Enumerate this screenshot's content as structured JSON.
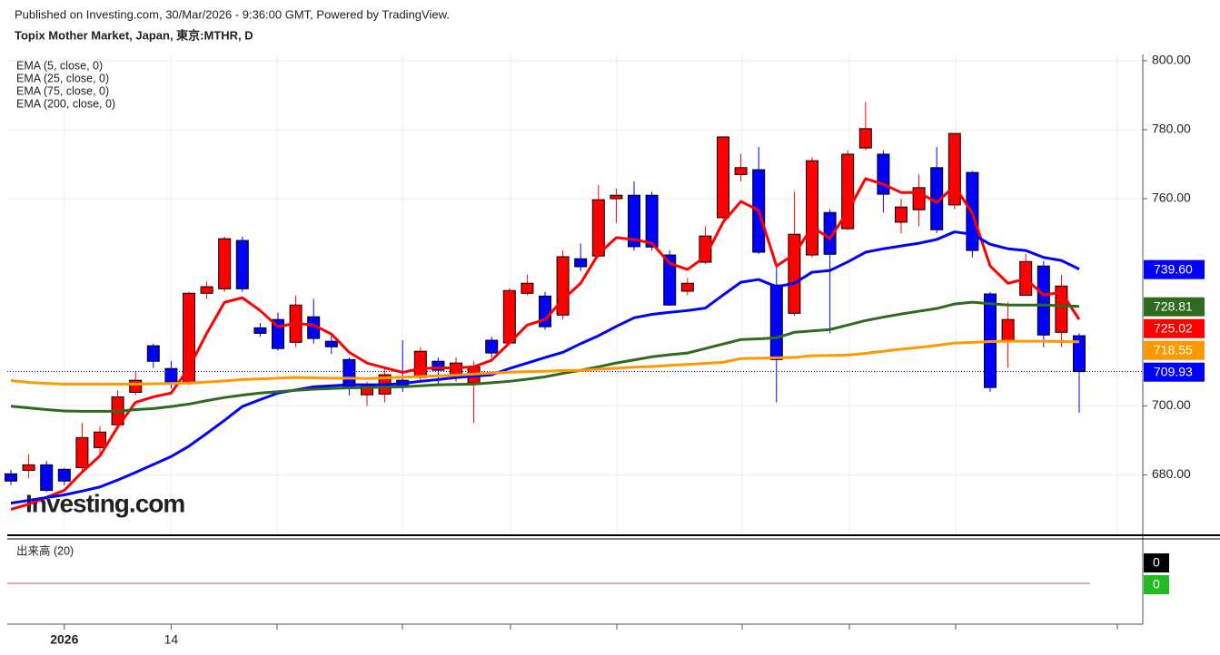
{
  "chart_data": {
    "type": "candlestick",
    "subtitle": "Published on Investing.com, 30/Mar/2026 - 9:36:00 GMT, Powered by TradingView.",
    "title": "Topix Mother Market, Japan, 東京:MTHR, D",
    "watermark": "Investing.com",
    "categories": [
      null,
      null,
      null,
      "2026",
      null,
      null,
      null,
      null,
      null,
      "14",
      null,
      null,
      null,
      null,
      null,
      null,
      null,
      null,
      null,
      null,
      null,
      null,
      null,
      null,
      null,
      null,
      null,
      null,
      null,
      null,
      null,
      null,
      null,
      null,
      null,
      null,
      null,
      null,
      null,
      null,
      null,
      null,
      null,
      null,
      null,
      null,
      null,
      null,
      null,
      null,
      null,
      null,
      null,
      null,
      null,
      null,
      null,
      null,
      null,
      null,
      null
    ],
    "open": [
      680.3,
      681.3,
      682.9,
      681.6,
      682.1,
      687.9,
      694.5,
      703.9,
      717.4,
      710.8,
      706.6,
      732.6,
      733.9,
      747.9,
      722.6,
      725,
      718.4,
      725.8,
      718.7,
      713.4,
      703.2,
      703.4,
      707.4,
      708.2,
      712.9,
      709,
      706.6,
      719,
      718.2,
      732.6,
      731.8,
      726.3,
      742.6,
      743.4,
      760,
      761,
      761,
      743.7,
      733.2,
      741.6,
      754.5,
      767,
      768.4,
      735,
      726.8,
      743.7,
      756,
      751.3,
      774.7,
      772.9,
      753.2,
      756.8,
      769,
      758.2,
      767.6,
      732.4,
      718.7,
      732,
      740.5,
      721.3,
      720.3
    ],
    "high": [
      681.5,
      686,
      684,
      682,
      695,
      694,
      704.5,
      710,
      718,
      713,
      733,
      736,
      749,
      749,
      724,
      727,
      732,
      731,
      721,
      714,
      707,
      711,
      719,
      717,
      714,
      714,
      713,
      720,
      734,
      738,
      733,
      745,
      747,
      764,
      763,
      765,
      762,
      745,
      737,
      752,
      778,
      773,
      775,
      741,
      762,
      772,
      757,
      774,
      788,
      774,
      760,
      767,
      775,
      779,
      768,
      733,
      730,
      744,
      742,
      738,
      721
    ],
    "low": [
      677,
      679,
      675,
      677,
      681,
      686,
      694,
      703,
      711,
      705,
      706,
      731,
      733,
      733,
      720,
      716,
      717,
      718,
      715,
      703,
      700,
      701,
      704,
      707,
      706,
      707,
      695,
      714,
      718,
      732,
      722,
      725,
      739,
      743,
      753,
      745,
      745,
      729,
      732,
      741,
      754,
      765,
      744,
      701,
      726,
      743,
      721,
      751,
      774,
      756,
      750,
      752,
      750,
      757,
      743,
      704,
      711,
      732,
      717,
      717,
      698
    ],
    "close": [
      678.2,
      682.9,
      675.5,
      678.2,
      690.8,
      692.4,
      702.6,
      707.4,
      712.9,
      706.8,
      732.6,
      734.5,
      748.4,
      733.9,
      721,
      716.6,
      729.2,
      719.5,
      717.1,
      705,
      706.1,
      709,
      705.5,
      715.8,
      710.3,
      712.4,
      711.3,
      715.3,
      733.4,
      735.5,
      722.9,
      743.2,
      740.3,
      759.7,
      761,
      746.1,
      746,
      729.2,
      735.5,
      749.2,
      777.9,
      769,
      744.5,
      713.4,
      749.7,
      771,
      743.9,
      772.9,
      780.3,
      761.3,
      757.6,
      763.2,
      751,
      778.9,
      745,
      705.3,
      725,
      741.8,
      720.5,
      734.7,
      709.93
    ],
    "close_label": "709.93",
    "up_color": "#ff0000",
    "down_color": "#0000ff",
    "last_color": "#0000ff",
    "series": [
      {
        "name": "EMA (5, close, 0)",
        "color": "#ff0000",
        "last_label": "725.02",
        "values": [
          670,
          671.5,
          673.5,
          675.5,
          680.8,
          685.5,
          693.9,
          701,
          702.6,
          703.7,
          711,
          721,
          730,
          731.3,
          727.6,
          722.9,
          723.9,
          723.4,
          720.8,
          715.5,
          712.4,
          711,
          709.7,
          710.8,
          711,
          711,
          711.3,
          713.2,
          718.2,
          723.4,
          725,
          730.8,
          735.5,
          744,
          748.7,
          748.2,
          747.1,
          741.3,
          739.5,
          743.2,
          753.2,
          759.2,
          756.6,
          740.5,
          743.9,
          751.8,
          748.5,
          756.3,
          765.8,
          764.2,
          761.8,
          761.8,
          758.9,
          763.7,
          755.8,
          740.5,
          735.5,
          736.8,
          732.1,
          732.9,
          725.02
        ]
      },
      {
        "name": "EMA (25, close, 0)",
        "color": "#0000ff",
        "last_label": "739.60",
        "values": [
          671.8,
          672.6,
          673.4,
          674.2,
          675.3,
          676.5,
          678.5,
          680.7,
          683,
          685.3,
          688.3,
          692,
          695.8,
          699.8,
          701.8,
          703.7,
          704.6,
          705.5,
          705.8,
          706.1,
          706.1,
          706.1,
          706.5,
          707.1,
          707.6,
          708.2,
          708.6,
          709,
          710.8,
          712.4,
          714,
          715.5,
          718,
          720.3,
          723,
          725.5,
          726.5,
          727.1,
          727.6,
          728.3,
          732.1,
          735.8,
          736.6,
          734.5,
          735.5,
          738.7,
          739.2,
          741.7,
          744.5,
          745.5,
          746.3,
          747.1,
          748.2,
          750.4,
          749.7,
          746.8,
          745.5,
          745,
          743,
          742.1,
          739.6
        ]
      },
      {
        "name": "EMA (75, close, 0)",
        "color": "#2e6b1e",
        "last_label": "728.81",
        "values": [
          699.9,
          699.4,
          698.9,
          698.5,
          698.4,
          698.4,
          698.4,
          698.9,
          699.2,
          699.8,
          700.5,
          701.5,
          702.4,
          703.1,
          703.7,
          704.1,
          704.5,
          704.8,
          705,
          705.2,
          705.3,
          705.4,
          705.5,
          705.8,
          706.1,
          706.2,
          706.3,
          706.7,
          707.1,
          707.7,
          708.4,
          709.4,
          710.3,
          711.3,
          712.4,
          713.3,
          714.2,
          714.8,
          715.3,
          716.6,
          717.9,
          719.2,
          719.4,
          719.7,
          721.3,
          721.7,
          722.1,
          723.4,
          724.7,
          725.7,
          726.6,
          727.4,
          728.2,
          729.5,
          730,
          729.6,
          729.2,
          729.2,
          729.2,
          729,
          728.81
        ]
      },
      {
        "name": "EMA (200, close, 0)",
        "color": "#ff9900",
        "last_label": "718.55",
        "values": [
          707.3,
          706.8,
          706.5,
          706.3,
          706.3,
          706.3,
          706.3,
          706.3,
          706.4,
          706.5,
          706.6,
          706.9,
          707.2,
          707.6,
          707.8,
          708,
          708.2,
          708.1,
          708,
          708,
          707.9,
          708.1,
          708.3,
          708.5,
          708.7,
          708.9,
          709.2,
          709.5,
          709.7,
          709.9,
          710,
          710.2,
          710.3,
          710.6,
          710.9,
          711.2,
          711.4,
          711.7,
          712,
          712.3,
          712.6,
          713.7,
          713.8,
          713.9,
          714,
          714.5,
          714.6,
          714.7,
          715.2,
          715.8,
          716.4,
          716.9,
          717.5,
          718.2,
          718.4,
          718.6,
          718.7,
          718.7,
          718.7,
          718.6,
          718.55
        ]
      }
    ],
    "ylim": [
      662.5,
      801.8
    ],
    "yticks": [
      {
        "value": 680,
        "label": "680.00"
      },
      {
        "value": 700,
        "label": "700.00"
      },
      {
        "value": 760,
        "label": "760.00"
      },
      {
        "value": 780,
        "label": "780.00"
      },
      {
        "value": 800,
        "label": "800.00"
      }
    ],
    "grid": true,
    "volume": {
      "name": "出来高 (20)",
      "values": [
        0,
        0
      ],
      "colors": [
        "#000000",
        "#22bb22"
      ]
    }
  }
}
